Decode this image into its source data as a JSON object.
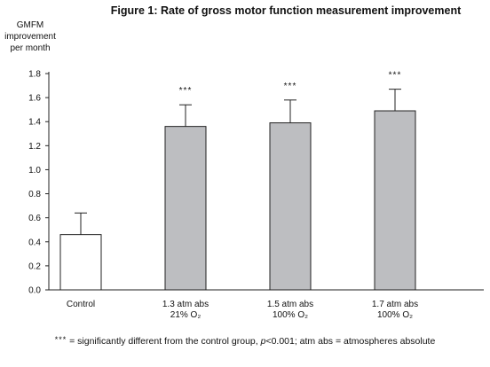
{
  "chart_data": {
    "type": "bar",
    "title": "Figure 1: Rate of gross motor function measurement improvement",
    "ylabel_lines": [
      "GMFM",
      "improvement",
      "per month"
    ],
    "ylim": [
      0,
      1.8
    ],
    "yticks": [
      "0.0",
      "0.2",
      "0.4",
      "0.6",
      "0.8",
      "1.0",
      "1.2",
      "1.4",
      "1.6",
      "1.8"
    ],
    "grid": false,
    "categories": [
      {
        "line1": "Control",
        "line2": ""
      },
      {
        "line1": "1.3 atm abs",
        "line2": "21% O₂"
      },
      {
        "line1": "1.5 atm abs",
        "line2": "100% O₂"
      },
      {
        "line1": "1.7 atm abs",
        "line2": "100% O₂"
      }
    ],
    "values": [
      0.46,
      1.36,
      1.39,
      1.49
    ],
    "error_upper": [
      0.64,
      1.54,
      1.58,
      1.67
    ],
    "significance": [
      "",
      "***",
      "***",
      "***"
    ],
    "bar_colors": [
      "#ffffff",
      "#bdbec1",
      "#bdbec1",
      "#bdbec1"
    ]
  },
  "footnote": {
    "stars": "***",
    "part1": " = significantly different from the control group, ",
    "p_symbol": "p",
    "part2": "<0.001;  atm abs = atmospheres absolute"
  }
}
